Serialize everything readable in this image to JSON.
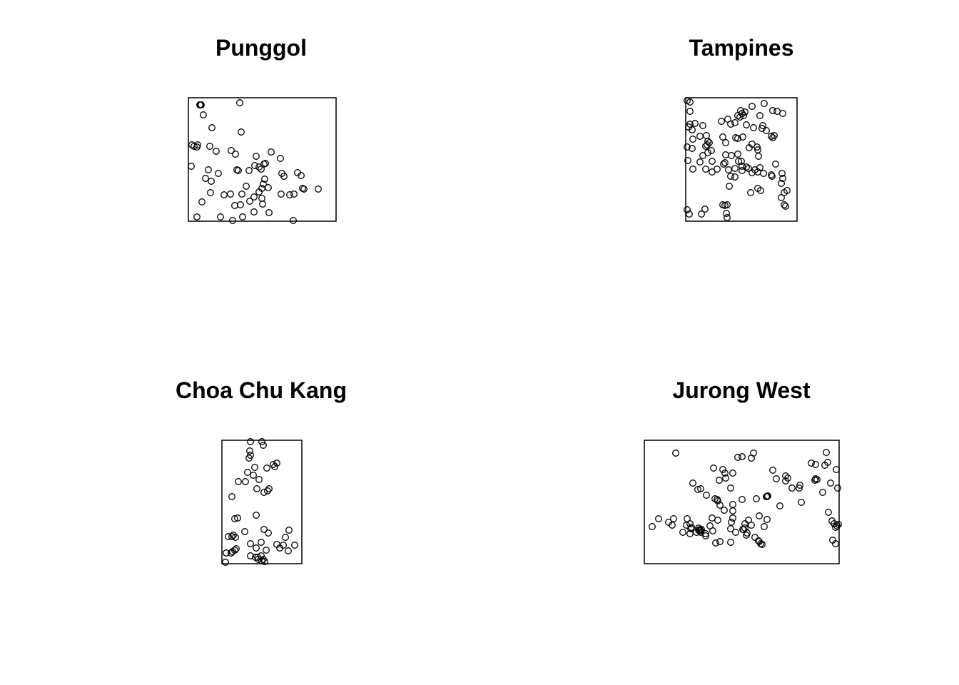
{
  "chart_data": [
    {
      "type": "scatter",
      "title": "Punggol",
      "xlim": [
        0,
        207
      ],
      "ylim": [
        0,
        173
      ],
      "points": [
        [
          16,
          163
        ],
        [
          17,
          163
        ],
        [
          18,
          163
        ],
        [
          72,
          166
        ],
        [
          21,
          149
        ],
        [
          33,
          131
        ],
        [
          74,
          125
        ],
        [
          5,
          107
        ],
        [
          8,
          105
        ],
        [
          13,
          107
        ],
        [
          12,
          104
        ],
        [
          30,
          105
        ],
        [
          39,
          98
        ],
        [
          60,
          99
        ],
        [
          66,
          94
        ],
        [
          116,
          97
        ],
        [
          95,
          91
        ],
        [
          129,
          88
        ],
        [
          4,
          77
        ],
        [
          28,
          72
        ],
        [
          42,
          67
        ],
        [
          24,
          60
        ],
        [
          32,
          56
        ],
        [
          68,
          72
        ],
        [
          70,
          71
        ],
        [
          85,
          71
        ],
        [
          93,
          78
        ],
        [
          99,
          76
        ],
        [
          106,
          80
        ],
        [
          108,
          81
        ],
        [
          102,
          73
        ],
        [
          134,
          63
        ],
        [
          131,
          67
        ],
        [
          153,
          68
        ],
        [
          158,
          64
        ],
        [
          107,
          59
        ],
        [
          105,
          52
        ],
        [
          112,
          47
        ],
        [
          103,
          46
        ],
        [
          99,
          41
        ],
        [
          81,
          49
        ],
        [
          75,
          38
        ],
        [
          59,
          38
        ],
        [
          92,
          34
        ],
        [
          103,
          32
        ],
        [
          130,
          38
        ],
        [
          142,
          37
        ],
        [
          148,
          38
        ],
        [
          162,
          45
        ],
        [
          160,
          46
        ],
        [
          182,
          45
        ],
        [
          19,
          27
        ],
        [
          31,
          40
        ],
        [
          50,
          37
        ],
        [
          65,
          22
        ],
        [
          73,
          23
        ],
        [
          86,
          28
        ],
        [
          104,
          24
        ],
        [
          92,
          13
        ],
        [
          113,
          12
        ],
        [
          45,
          6
        ],
        [
          76,
          6
        ],
        [
          12,
          6
        ],
        [
          62,
          1
        ],
        [
          147,
          1
        ]
      ]
    },
    {
      "type": "scatter",
      "title": "Tampines",
      "xlim": [
        0,
        156
      ],
      "ylim": [
        0,
        173
      ],
      "points": [
        [
          2,
          169
        ],
        [
          6,
          167
        ],
        [
          6,
          154
        ],
        [
          77,
          155
        ],
        [
          83,
          153
        ],
        [
          93,
          161
        ],
        [
          110,
          165
        ],
        [
          104,
          148
        ],
        [
          122,
          155
        ],
        [
          128,
          154
        ],
        [
          136,
          151
        ],
        [
          6,
          136
        ],
        [
          4,
          132
        ],
        [
          13,
          137
        ],
        [
          9,
          128
        ],
        [
          24,
          134
        ],
        [
          50,
          140
        ],
        [
          59,
          143
        ],
        [
          63,
          136
        ],
        [
          69,
          138
        ],
        [
          76,
          146
        ],
        [
          79,
          151
        ],
        [
          73,
          148
        ],
        [
          81,
          148
        ],
        [
          85,
          135
        ],
        [
          95,
          131
        ],
        [
          107,
          130
        ],
        [
          108,
          134
        ],
        [
          113,
          127
        ],
        [
          120,
          119
        ],
        [
          122,
          117
        ],
        [
          124,
          120
        ],
        [
          29,
          120
        ],
        [
          31,
          112
        ],
        [
          30,
          107
        ],
        [
          33,
          110
        ],
        [
          28,
          105
        ],
        [
          10,
          115
        ],
        [
          20,
          119
        ],
        [
          52,
          118
        ],
        [
          56,
          110
        ],
        [
          70,
          117
        ],
        [
          73,
          116
        ],
        [
          80,
          118
        ],
        [
          93,
          108
        ],
        [
          89,
          103
        ],
        [
          101,
          100
        ],
        [
          9,
          102
        ],
        [
          2,
          104
        ],
        [
          24,
          92
        ],
        [
          31,
          96
        ],
        [
          36,
          99
        ],
        [
          37,
          84
        ],
        [
          56,
          93
        ],
        [
          64,
          92
        ],
        [
          73,
          94
        ],
        [
          78,
          84
        ],
        [
          100,
          104
        ],
        [
          102,
          91
        ],
        [
          3,
          85
        ],
        [
          20,
          83
        ],
        [
          37,
          69
        ],
        [
          28,
          73
        ],
        [
          44,
          73
        ],
        [
          53,
          80
        ],
        [
          55,
          82
        ],
        [
          60,
          72
        ],
        [
          74,
          84
        ],
        [
          79,
          77
        ],
        [
          85,
          76
        ],
        [
          88,
          74
        ],
        [
          93,
          68
        ],
        [
          97,
          72
        ],
        [
          101,
          69
        ],
        [
          104,
          75
        ],
        [
          109,
          67
        ],
        [
          126,
          80
        ],
        [
          10,
          73
        ],
        [
          69,
          74
        ],
        [
          63,
          63
        ],
        [
          69,
          62
        ],
        [
          79,
          71
        ],
        [
          120,
          65
        ],
        [
          136,
          60
        ],
        [
          135,
          67
        ],
        [
          134,
          53
        ],
        [
          121,
          63
        ],
        [
          61,
          49
        ],
        [
          91,
          40
        ],
        [
          101,
          46
        ],
        [
          105,
          43
        ],
        [
          138,
          40
        ],
        [
          142,
          43
        ],
        [
          134,
          33
        ],
        [
          138,
          23
        ],
        [
          140,
          21
        ],
        [
          2,
          16
        ],
        [
          5,
          10
        ],
        [
          22,
          10
        ],
        [
          27,
          17
        ],
        [
          52,
          23
        ],
        [
          55,
          22
        ],
        [
          58,
          23
        ],
        [
          57,
          11
        ],
        [
          58,
          5
        ]
      ]
    },
    {
      "type": "scatter",
      "title": "Choa Chu Kang",
      "xlim": [
        0,
        112
      ],
      "ylim": [
        0,
        173
      ],
      "points": [
        [
          40,
          171
        ],
        [
          56,
          171
        ],
        [
          58,
          166
        ],
        [
          39,
          158
        ],
        [
          40,
          152
        ],
        [
          38,
          148
        ],
        [
          46,
          135
        ],
        [
          63,
          134
        ],
        [
          74,
          136
        ],
        [
          72,
          139
        ],
        [
          77,
          141
        ],
        [
          36,
          128
        ],
        [
          44,
          124
        ],
        [
          52,
          118
        ],
        [
          23,
          115
        ],
        [
          33,
          115
        ],
        [
          49,
          105
        ],
        [
          64,
          102
        ],
        [
          59,
          100
        ],
        [
          66,
          105
        ],
        [
          14,
          94
        ],
        [
          18,
          63
        ],
        [
          22,
          64
        ],
        [
          48,
          68
        ],
        [
          59,
          48
        ],
        [
          65,
          43
        ],
        [
          94,
          47
        ],
        [
          89,
          37
        ],
        [
          32,
          45
        ],
        [
          9,
          38
        ],
        [
          14,
          38
        ],
        [
          19,
          37
        ],
        [
          16,
          40
        ],
        [
          40,
          28
        ],
        [
          55,
          30
        ],
        [
          48,
          22
        ],
        [
          62,
          19
        ],
        [
          77,
          27
        ],
        [
          86,
          26
        ],
        [
          81,
          22
        ],
        [
          93,
          18
        ],
        [
          102,
          26
        ],
        [
          6,
          15
        ],
        [
          13,
          15
        ],
        [
          15,
          17
        ],
        [
          18,
          19
        ],
        [
          20,
          21
        ],
        [
          40,
          11
        ],
        [
          47,
          9
        ],
        [
          50,
          9
        ],
        [
          55,
          11
        ],
        [
          51,
          6
        ],
        [
          56,
          4
        ],
        [
          58,
          6
        ],
        [
          60,
          3
        ],
        [
          5,
          2
        ]
      ]
    },
    {
      "type": "scatter",
      "title": "Jurong West",
      "xlim": [
        0,
        273
      ],
      "ylim": [
        0,
        173
      ],
      "points": [
        [
          44,
          155
        ],
        [
          131,
          149
        ],
        [
          137,
          150
        ],
        [
          153,
          155
        ],
        [
          150,
          148
        ],
        [
          255,
          156
        ],
        [
          234,
          141
        ],
        [
          240,
          139
        ],
        [
          253,
          138
        ],
        [
          257,
          142
        ],
        [
          269,
          132
        ],
        [
          97,
          134
        ],
        [
          110,
          132
        ],
        [
          113,
          127
        ],
        [
          124,
          127
        ],
        [
          180,
          131
        ],
        [
          185,
          119
        ],
        [
          198,
          116
        ],
        [
          201,
          120
        ],
        [
          198,
          123
        ],
        [
          207,
          106
        ],
        [
          217,
          106
        ],
        [
          218,
          110
        ],
        [
          239,
          117
        ],
        [
          242,
          118
        ],
        [
          240,
          119
        ],
        [
          261,
          113
        ],
        [
          271,
          106
        ],
        [
          68,
          113
        ],
        [
          75,
          104
        ],
        [
          79,
          105
        ],
        [
          105,
          117
        ],
        [
          114,
          120
        ],
        [
          121,
          106
        ],
        [
          87,
          96
        ],
        [
          99,
          91
        ],
        [
          102,
          90
        ],
        [
          103,
          88
        ],
        [
          106,
          82
        ],
        [
          112,
          75
        ],
        [
          124,
          74
        ],
        [
          124,
          83
        ],
        [
          137,
          90
        ],
        [
          157,
          91
        ],
        [
          171,
          94
        ],
        [
          172,
          94
        ],
        [
          173,
          95
        ],
        [
          190,
          81
        ],
        [
          220,
          86
        ],
        [
          250,
          100
        ],
        [
          258,
          72
        ],
        [
          263,
          60
        ],
        [
          266,
          56
        ],
        [
          272,
          55
        ],
        [
          268,
          51
        ],
        [
          270,
          53
        ],
        [
          264,
          33
        ],
        [
          268,
          28
        ],
        [
          11,
          52
        ],
        [
          20,
          63
        ],
        [
          41,
          63
        ],
        [
          59,
          54
        ],
        [
          60,
          63
        ],
        [
          64,
          56
        ],
        [
          66,
          51
        ],
        [
          65,
          49
        ],
        [
          76,
          50
        ],
        [
          79,
          44
        ],
        [
          78,
          46
        ],
        [
          78,
          48
        ],
        [
          79,
          46
        ],
        [
          80,
          48
        ],
        [
          96,
          46
        ],
        [
          92,
          53
        ],
        [
          95,
          64
        ],
        [
          103,
          61
        ],
        [
          122,
          58
        ],
        [
          124,
          64
        ],
        [
          121,
          49
        ],
        [
          139,
          48
        ],
        [
          141,
          56
        ],
        [
          146,
          61
        ],
        [
          150,
          54
        ],
        [
          161,
          67
        ],
        [
          168,
          52
        ],
        [
          172,
          62
        ],
        [
          34,
          58
        ],
        [
          39,
          54
        ],
        [
          54,
          44
        ],
        [
          64,
          42
        ],
        [
          73,
          44
        ],
        [
          76,
          47
        ],
        [
          86,
          39
        ],
        [
          86,
          42
        ],
        [
          100,
          29
        ],
        [
          106,
          31
        ],
        [
          121,
          30
        ],
        [
          128,
          44
        ],
        [
          138,
          48
        ],
        [
          144,
          43
        ],
        [
          141,
          50
        ],
        [
          143,
          40
        ],
        [
          155,
          37
        ],
        [
          160,
          32
        ],
        [
          161,
          31
        ],
        [
          163,
          28
        ],
        [
          165,
          27
        ]
      ]
    }
  ]
}
